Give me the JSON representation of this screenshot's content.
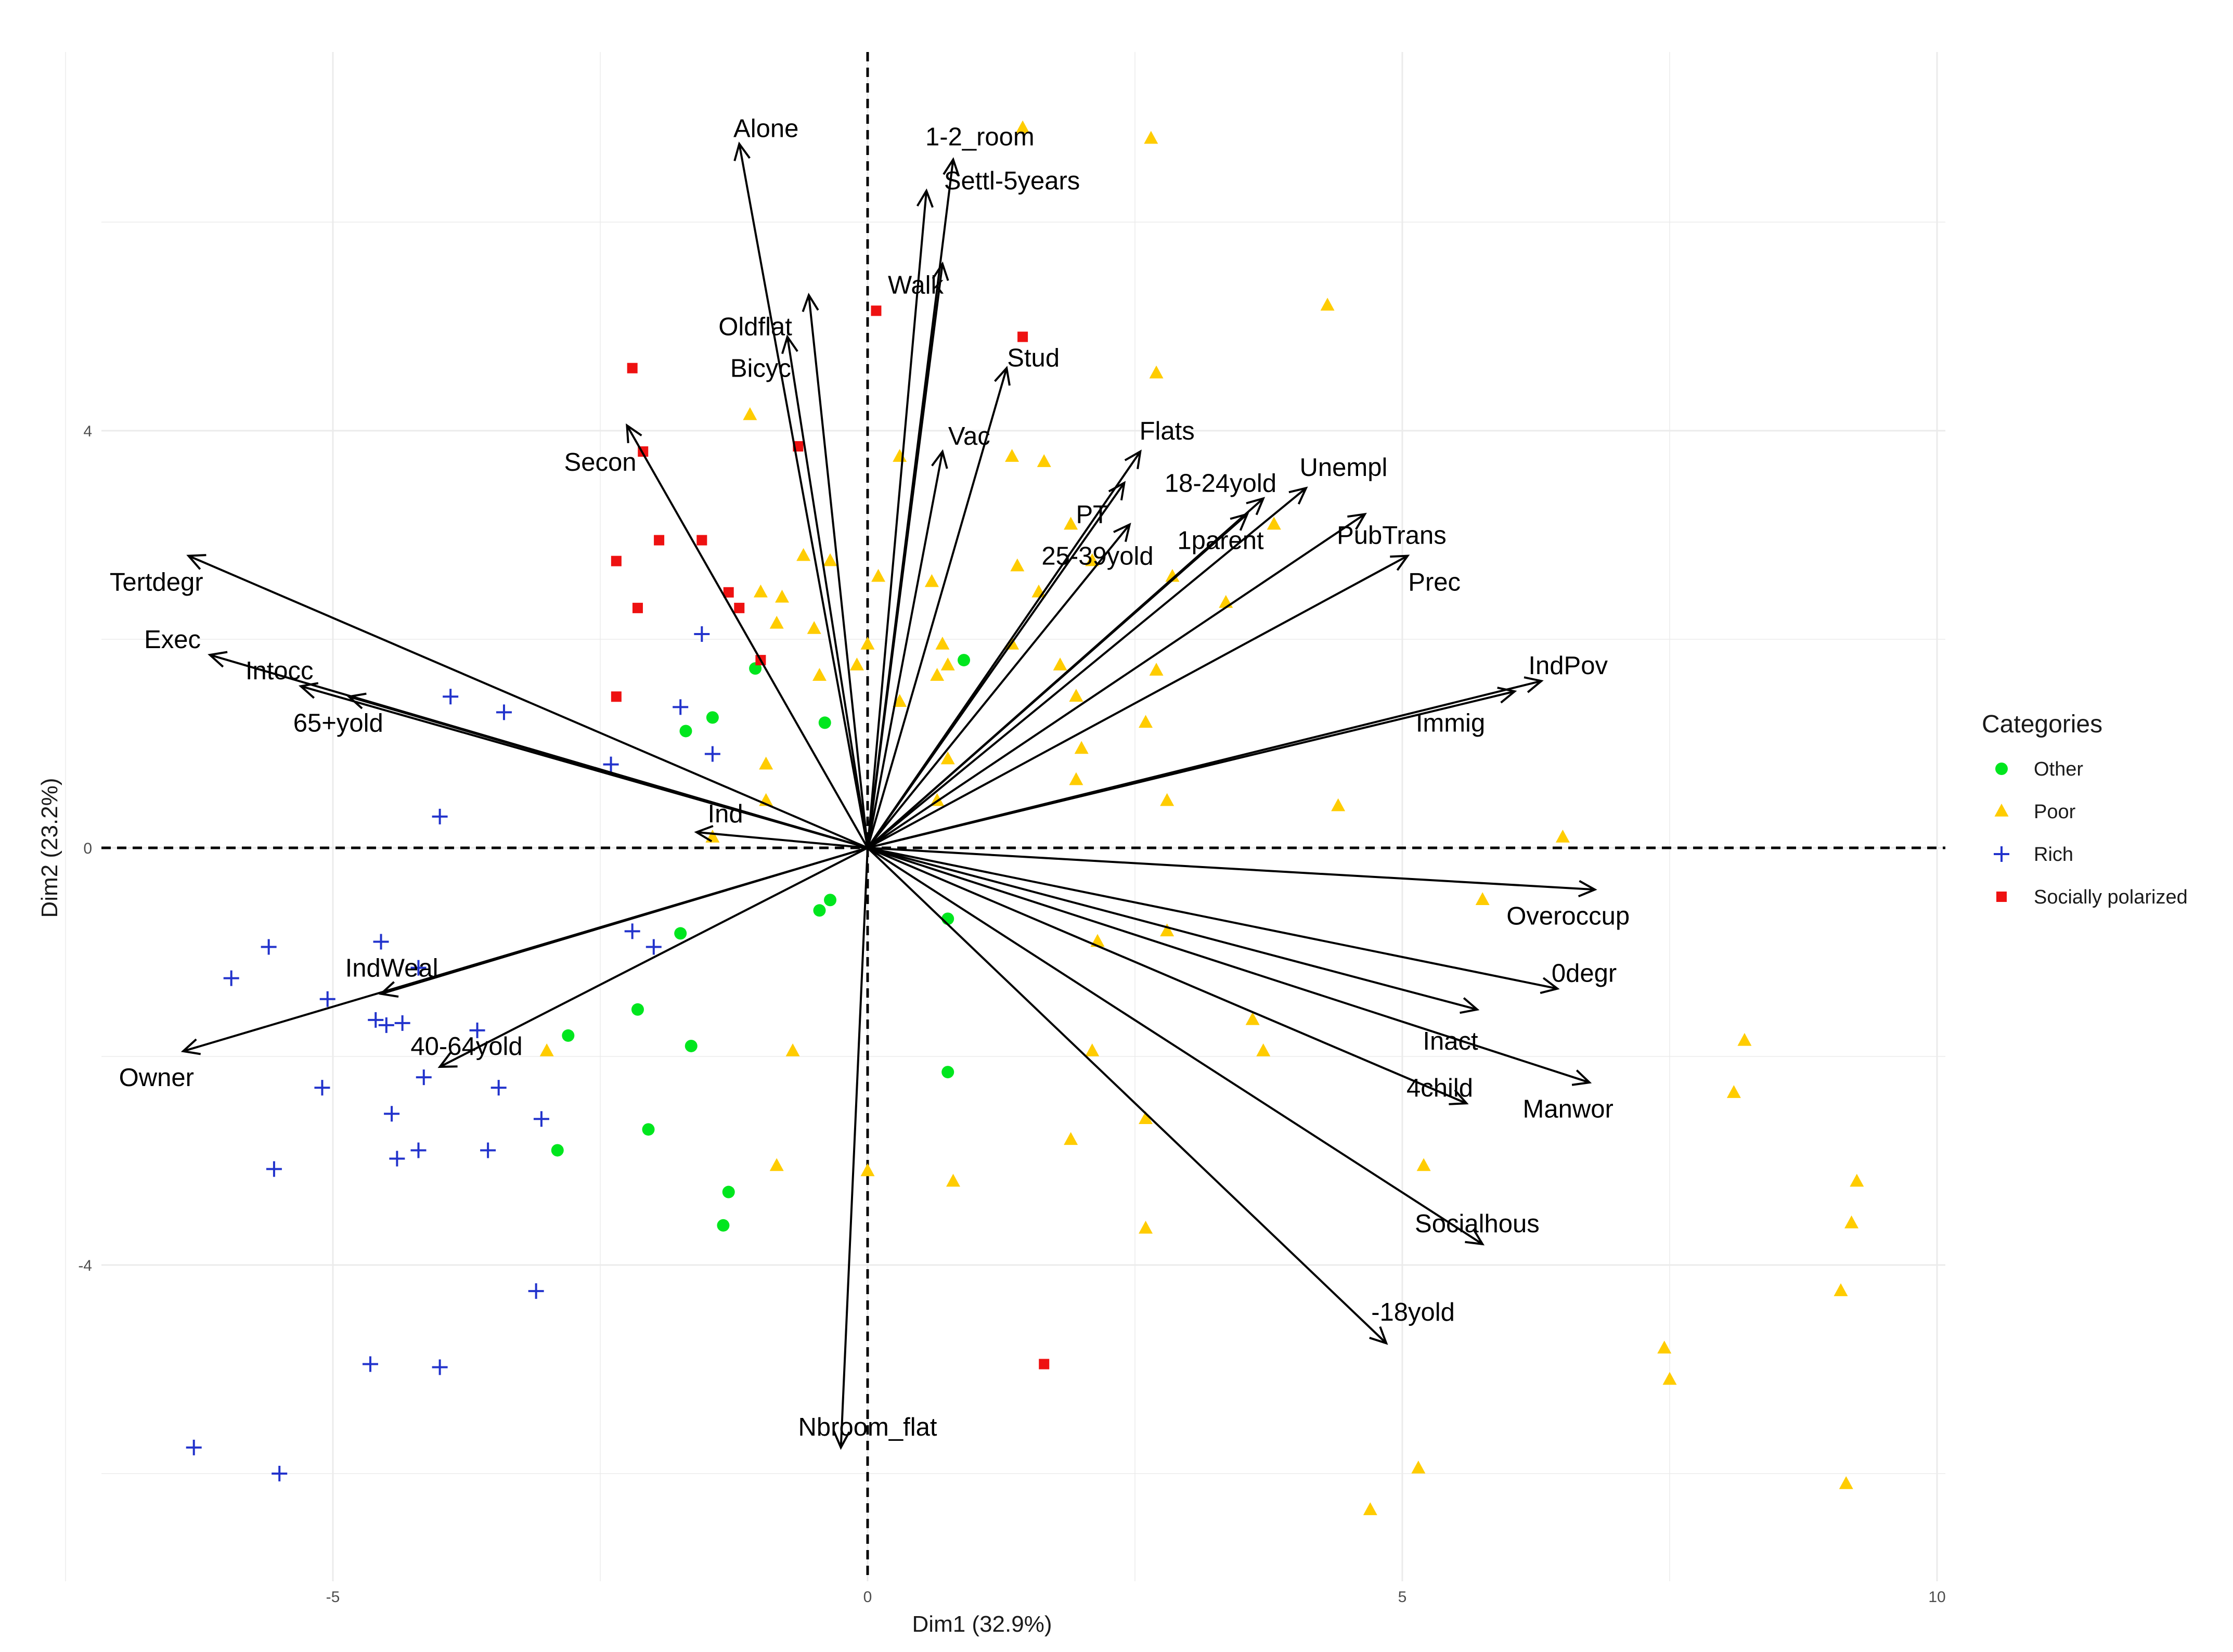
{
  "chart_data": {
    "type": "scatter",
    "subtype": "pca-biplot",
    "xlabel": "Dim1 (32.9%)",
    "ylabel": "Dim2 (23.2%)",
    "xlim": [
      -7.3,
      10.0
    ],
    "ylim": [
      -7.0,
      7.6
    ],
    "x_ticks": [
      -5,
      0,
      5,
      10
    ],
    "x_tick_labels": [
      "-5",
      "0",
      "5",
      "10"
    ],
    "y_ticks": [
      -4,
      0,
      4
    ],
    "y_tick_labels": [
      "-4",
      "0",
      "4"
    ],
    "grid": true,
    "reference_lines": {
      "x": 0,
      "y": 0,
      "style": "dashed"
    },
    "legend": {
      "title": "Categories",
      "position": "right",
      "entries": [
        {
          "name": "Other",
          "color": "#00e61e",
          "marker": "circle"
        },
        {
          "name": "Poor",
          "color": "#ffcc00",
          "marker": "triangle"
        },
        {
          "name": "Rich",
          "color": "#2233cc",
          "marker": "plus"
        },
        {
          "name": "Socially polarized",
          "color": "#ee1111",
          "marker": "square"
        }
      ]
    },
    "variables": [
      {
        "name": "Alone",
        "x": -1.2,
        "y": 6.75,
        "lx": -0.95,
        "ly": 6.9
      },
      {
        "name": "1-2_room",
        "x": 0.8,
        "y": 6.6,
        "lx": 1.05,
        "ly": 6.82
      },
      {
        "name": "Settl-5years",
        "x": 0.55,
        "y": 6.3,
        "lx": 1.35,
        "ly": 6.4
      },
      {
        "name": "Walk",
        "x": 0.7,
        "y": 5.6,
        "lx": 0.45,
        "ly": 5.4
      },
      {
        "name": "Oldflat",
        "x": -0.55,
        "y": 5.3,
        "lx": -1.05,
        "ly": 5.0
      },
      {
        "name": "Bicyc",
        "x": -0.75,
        "y": 4.9,
        "lx": -1.0,
        "ly": 4.6
      },
      {
        "name": "Stud",
        "x": 1.3,
        "y": 4.6,
        "lx": 1.55,
        "ly": 4.7
      },
      {
        "name": "Vac",
        "x": 0.7,
        "y": 3.8,
        "lx": 0.95,
        "ly": 3.95
      },
      {
        "name": "Secon",
        "x": -2.25,
        "y": 4.05,
        "lx": -2.5,
        "ly": 3.7
      },
      {
        "name": "Flats",
        "x": 2.55,
        "y": 3.8,
        "lx": 2.8,
        "ly": 4.0
      },
      {
        "name": "PT",
        "x": 2.4,
        "y": 3.5,
        "lx": 2.1,
        "ly": 3.2
      },
      {
        "name": "18-24yold",
        "x": 3.7,
        "y": 3.35,
        "lx": 3.3,
        "ly": 3.5
      },
      {
        "name": "Unempl",
        "x": 4.1,
        "y": 3.45,
        "lx": 4.45,
        "ly": 3.65
      },
      {
        "name": "25-39yold",
        "x": 2.45,
        "y": 3.1,
        "lx": 2.15,
        "ly": 2.8
      },
      {
        "name": "1parent",
        "x": 3.55,
        "y": 3.2,
        "lx": 3.3,
        "ly": 2.95
      },
      {
        "name": "PubTrans",
        "x": 4.65,
        "y": 3.2,
        "lx": 4.9,
        "ly": 3.0
      },
      {
        "name": "Prec",
        "x": 5.05,
        "y": 2.8,
        "lx": 5.3,
        "ly": 2.55
      },
      {
        "name": "Tertdegr",
        "x": -6.35,
        "y": 2.8,
        "lx": -6.65,
        "ly": 2.55
      },
      {
        "name": "Exec",
        "x": -6.15,
        "y": 1.85,
        "lx": -6.5,
        "ly": 2.0
      },
      {
        "name": "Intocc",
        "x": -4.85,
        "y": 1.45,
        "lx": -5.5,
        "ly": 1.7
      },
      {
        "name": "65+yold",
        "x": -5.3,
        "y": 1.55,
        "lx": -4.95,
        "ly": 1.2
      },
      {
        "name": "IndPov",
        "x": 6.3,
        "y": 1.6,
        "lx": 6.55,
        "ly": 1.75
      },
      {
        "name": "Immig",
        "x": 6.05,
        "y": 1.5,
        "lx": 5.45,
        "ly": 1.2
      },
      {
        "name": "Ind",
        "x": -1.6,
        "y": 0.15,
        "lx": -1.33,
        "ly": 0.33
      },
      {
        "name": "Overoccup",
        "x": 6.8,
        "y": -0.4,
        "lx": 6.55,
        "ly": -0.65
      },
      {
        "name": "0degr",
        "x": 6.45,
        "y": -1.35,
        "lx": 6.7,
        "ly": -1.2
      },
      {
        "name": "Inact",
        "x": 5.7,
        "y": -1.55,
        "lx": 5.45,
        "ly": -1.85
      },
      {
        "name": "4child",
        "x": 5.6,
        "y": -2.45,
        "lx": 5.35,
        "ly": -2.3
      },
      {
        "name": "Manwor",
        "x": 6.75,
        "y": -2.25,
        "lx": 6.55,
        "ly": -2.5
      },
      {
        "name": "Socialhous",
        "x": 5.75,
        "y": -3.8,
        "lx": 5.7,
        "ly": -3.6
      },
      {
        "name": "-18yold",
        "x": 4.85,
        "y": -4.75,
        "lx": 5.1,
        "ly": -4.45
      },
      {
        "name": "Nbroom_flat",
        "x": -0.25,
        "y": -5.75,
        "lx": 0.0,
        "ly": -5.55
      },
      {
        "name": "IndWeal",
        "x": -4.55,
        "y": -1.4,
        "lx": -4.45,
        "ly": -1.15
      },
      {
        "name": "Owner",
        "x": -6.4,
        "y": -1.95,
        "lx": -6.65,
        "ly": -2.2
      },
      {
        "name": "40-64yold",
        "x": -4.0,
        "y": -2.1,
        "lx": -3.75,
        "ly": -1.9
      }
    ],
    "points": {
      "Other": [
        [
          0.9,
          1.8
        ],
        [
          -1.05,
          1.72
        ],
        [
          -1.45,
          1.25
        ],
        [
          -1.7,
          1.12
        ],
        [
          -0.4,
          1.2
        ],
        [
          -0.35,
          -0.5
        ],
        [
          -0.45,
          -0.6
        ],
        [
          0.75,
          -0.68
        ],
        [
          -1.75,
          -0.82
        ],
        [
          -2.8,
          -1.8
        ],
        [
          -2.15,
          -1.55
        ],
        [
          -1.65,
          -1.9
        ],
        [
          0.75,
          -2.15
        ],
        [
          -2.05,
          -2.7
        ],
        [
          -2.9,
          -2.9
        ],
        [
          -1.3,
          -3.3
        ],
        [
          -1.35,
          -3.62
        ]
      ],
      "Poor": [
        [
          1.45,
          6.9
        ],
        [
          2.65,
          6.8
        ],
        [
          4.3,
          5.2
        ],
        [
          2.7,
          4.55
        ],
        [
          -1.1,
          4.15
        ],
        [
          0.3,
          3.75
        ],
        [
          1.35,
          3.75
        ],
        [
          1.65,
          3.7
        ],
        [
          1.9,
          3.1
        ],
        [
          2.1,
          2.75
        ],
        [
          -0.6,
          2.8
        ],
        [
          -0.35,
          2.75
        ],
        [
          1.4,
          2.7
        ],
        [
          2.85,
          2.6
        ],
        [
          3.8,
          3.1
        ],
        [
          3.35,
          2.35
        ],
        [
          -1.0,
          2.45
        ],
        [
          -0.8,
          2.4
        ],
        [
          -0.5,
          2.1
        ],
        [
          -0.85,
          2.15
        ],
        [
          0.6,
          2.55
        ],
        [
          0.1,
          2.6
        ],
        [
          1.6,
          2.45
        ],
        [
          0.7,
          1.95
        ],
        [
          0.75,
          1.75
        ],
        [
          0.65,
          1.65
        ],
        [
          1.35,
          1.95
        ],
        [
          1.8,
          1.75
        ],
        [
          2.7,
          1.7
        ],
        [
          0.0,
          1.95
        ],
        [
          -0.1,
          1.75
        ],
        [
          -0.45,
          1.65
        ],
        [
          0.3,
          1.4
        ],
        [
          1.95,
          1.45
        ],
        [
          2.6,
          1.2
        ],
        [
          2.0,
          0.95
        ],
        [
          0.75,
          0.85
        ],
        [
          1.95,
          0.65
        ],
        [
          -0.95,
          0.8
        ],
        [
          -0.95,
          0.45
        ],
        [
          0.65,
          0.45
        ],
        [
          2.8,
          0.45
        ],
        [
          4.4,
          0.4
        ],
        [
          -1.45,
          0.1
        ],
        [
          6.5,
          0.1
        ],
        [
          5.75,
          -0.5
        ],
        [
          2.15,
          -0.9
        ],
        [
          2.8,
          -0.8
        ],
        [
          3.6,
          -1.65
        ],
        [
          3.7,
          -1.95
        ],
        [
          2.1,
          -1.95
        ],
        [
          -0.7,
          -1.95
        ],
        [
          -3.0,
          -1.95
        ],
        [
          8.2,
          -1.85
        ],
        [
          8.1,
          -2.35
        ],
        [
          2.6,
          -2.6
        ],
        [
          1.9,
          -2.8
        ],
        [
          5.2,
          -3.05
        ],
        [
          -0.85,
          -3.05
        ],
        [
          0.0,
          -3.1
        ],
        [
          0.8,
          -3.2
        ],
        [
          9.25,
          -3.2
        ],
        [
          9.2,
          -3.6
        ],
        [
          2.6,
          -3.65
        ],
        [
          9.1,
          -4.25
        ],
        [
          7.45,
          -4.8
        ],
        [
          7.5,
          -5.1
        ],
        [
          5.15,
          -5.95
        ],
        [
          4.7,
          -6.35
        ],
        [
          9.15,
          -6.1
        ]
      ],
      "Rich": [
        [
          -1.55,
          2.05
        ],
        [
          -3.9,
          1.45
        ],
        [
          -3.4,
          1.3
        ],
        [
          -1.75,
          1.35
        ],
        [
          -1.45,
          0.9
        ],
        [
          -2.4,
          0.8
        ],
        [
          -4.0,
          0.3
        ],
        [
          -2.2,
          -0.8
        ],
        [
          -2.0,
          -0.95
        ],
        [
          -4.55,
          -0.9
        ],
        [
          -5.6,
          -0.95
        ],
        [
          -5.95,
          -1.25
        ],
        [
          -4.2,
          -1.15
        ],
        [
          -5.05,
          -1.45
        ],
        [
          -4.6,
          -1.65
        ],
        [
          -4.5,
          -1.7
        ],
        [
          -4.35,
          -1.68
        ],
        [
          -3.65,
          -1.75
        ],
        [
          -4.15,
          -2.2
        ],
        [
          -5.1,
          -2.3
        ],
        [
          -3.45,
          -2.3
        ],
        [
          -4.45,
          -2.55
        ],
        [
          -3.05,
          -2.6
        ],
        [
          -4.2,
          -2.9
        ],
        [
          -4.4,
          -2.98
        ],
        [
          -3.55,
          -2.9
        ],
        [
          -5.55,
          -3.08
        ],
        [
          -3.1,
          -4.25
        ],
        [
          -4.65,
          -4.95
        ],
        [
          -4.0,
          -4.98
        ],
        [
          -6.3,
          -5.75
        ],
        [
          -5.5,
          -6.0
        ]
      ],
      "Socially polarized": [
        [
          0.08,
          5.15
        ],
        [
          1.45,
          4.9
        ],
        [
          -2.2,
          4.6
        ],
        [
          -0.65,
          3.85
        ],
        [
          -2.1,
          3.8
        ],
        [
          -2.35,
          2.75
        ],
        [
          -1.95,
          2.95
        ],
        [
          -1.55,
          2.95
        ],
        [
          -1.3,
          2.45
        ],
        [
          -1.2,
          2.3
        ],
        [
          -2.15,
          2.3
        ],
        [
          -1.0,
          1.8
        ],
        [
          -2.35,
          1.45
        ],
        [
          1.65,
          -4.95
        ]
      ]
    }
  }
}
